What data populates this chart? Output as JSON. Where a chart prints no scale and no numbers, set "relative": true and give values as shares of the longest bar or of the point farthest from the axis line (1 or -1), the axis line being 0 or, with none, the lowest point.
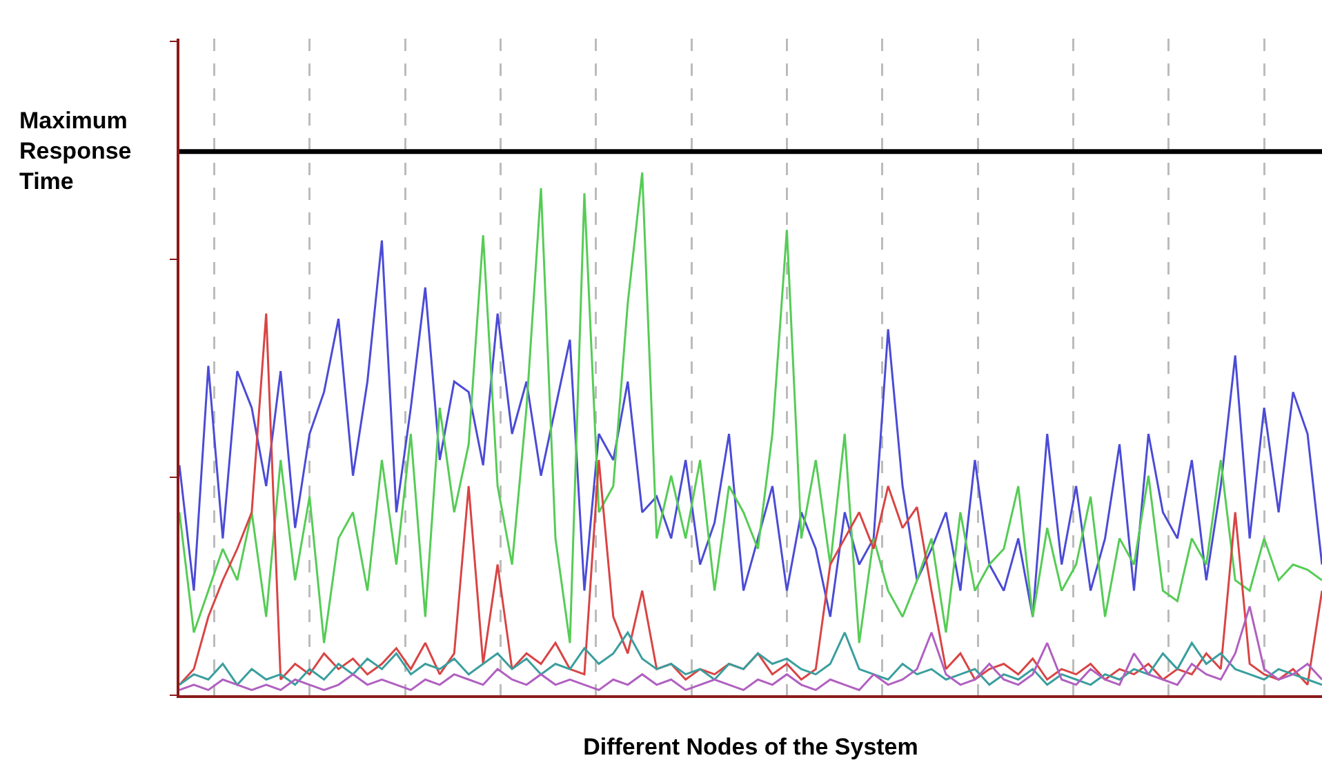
{
  "chart_data": {
    "type": "line",
    "xlabel": "Different Nodes of the System",
    "relative": true,
    "grid": "x",
    "categories": [
      null,
      null,
      null,
      null,
      null,
      null,
      null,
      null,
      null,
      null,
      null,
      null,
      null,
      null,
      null,
      null,
      null,
      null,
      null,
      null,
      null,
      null,
      null,
      null,
      null,
      null,
      null,
      null,
      null,
      null,
      null,
      null,
      null,
      null,
      null,
      null,
      null,
      null,
      null,
      null,
      null,
      null,
      null,
      null,
      null,
      null,
      null,
      null,
      null,
      null,
      null,
      null,
      null,
      null,
      null,
      null,
      null,
      null,
      null,
      null,
      null,
      null,
      null,
      null,
      null,
      null,
      null,
      null,
      null,
      null,
      null,
      null,
      null,
      null,
      null,
      null,
      null,
      null,
      null,
      null
    ],
    "series": [
      {
        "color": "#4b4bd6",
        "values": [
          0.44,
          0.2,
          0.63,
          0.3,
          0.62,
          0.55,
          0.4,
          0.62,
          0.32,
          0.5,
          0.58,
          0.72,
          0.42,
          0.6,
          0.87,
          0.35,
          0.55,
          0.78,
          0.45,
          0.6,
          0.58,
          0.44,
          0.73,
          0.5,
          0.6,
          0.42,
          0.55,
          0.68,
          0.2,
          0.5,
          0.45,
          0.6,
          0.35,
          0.38,
          0.3,
          0.45,
          0.25,
          0.33,
          0.5,
          0.2,
          0.3,
          0.4,
          0.2,
          0.35,
          0.28,
          0.15,
          0.35,
          0.25,
          0.3,
          0.7,
          0.4,
          0.22,
          0.28,
          0.35,
          0.2,
          0.45,
          0.25,
          0.2,
          0.3,
          0.15,
          0.5,
          0.25,
          0.4,
          0.2,
          0.3,
          0.48,
          0.2,
          0.5,
          0.35,
          0.3,
          0.45,
          0.22,
          0.4,
          0.65,
          0.3,
          0.55,
          0.35,
          0.58,
          0.5,
          0.25
        ]
      },
      {
        "color": "#55cc55",
        "values": [
          0.35,
          0.12,
          0.2,
          0.28,
          0.22,
          0.35,
          0.15,
          0.45,
          0.22,
          0.38,
          0.1,
          0.3,
          0.35,
          0.2,
          0.45,
          0.25,
          0.5,
          0.15,
          0.55,
          0.35,
          0.48,
          0.88,
          0.4,
          0.25,
          0.55,
          0.97,
          0.3,
          0.1,
          0.96,
          0.35,
          0.4,
          0.75,
          1.0,
          0.3,
          0.42,
          0.3,
          0.45,
          0.2,
          0.4,
          0.35,
          0.28,
          0.5,
          0.89,
          0.3,
          0.45,
          0.25,
          0.5,
          0.1,
          0.3,
          0.2,
          0.15,
          0.22,
          0.3,
          0.12,
          0.35,
          0.2,
          0.25,
          0.28,
          0.4,
          0.15,
          0.32,
          0.2,
          0.25,
          0.38,
          0.15,
          0.3,
          0.25,
          0.42,
          0.2,
          0.18,
          0.3,
          0.25,
          0.45,
          0.22,
          0.2,
          0.3,
          0.22,
          0.25,
          0.24,
          0.22
        ]
      },
      {
        "color": "#d94444",
        "values": [
          0.02,
          0.05,
          0.15,
          0.22,
          0.28,
          0.35,
          0.73,
          0.03,
          0.06,
          0.04,
          0.08,
          0.05,
          0.07,
          0.04,
          0.06,
          0.09,
          0.05,
          0.1,
          0.04,
          0.08,
          0.4,
          0.06,
          0.25,
          0.05,
          0.08,
          0.06,
          0.1,
          0.05,
          0.04,
          0.45,
          0.15,
          0.08,
          0.2,
          0.05,
          0.06,
          0.03,
          0.05,
          0.04,
          0.06,
          0.05,
          0.08,
          0.04,
          0.06,
          0.03,
          0.05,
          0.25,
          0.3,
          0.35,
          0.28,
          0.4,
          0.32,
          0.36,
          0.2,
          0.05,
          0.08,
          0.03,
          0.05,
          0.06,
          0.04,
          0.07,
          0.03,
          0.05,
          0.04,
          0.06,
          0.03,
          0.05,
          0.04,
          0.06,
          0.03,
          0.05,
          0.04,
          0.08,
          0.05,
          0.35,
          0.06,
          0.04,
          0.03,
          0.05,
          0.02,
          0.2
        ]
      },
      {
        "color": "#3a9e9e",
        "values": [
          0.02,
          0.04,
          0.03,
          0.06,
          0.02,
          0.05,
          0.03,
          0.04,
          0.02,
          0.05,
          0.03,
          0.06,
          0.04,
          0.07,
          0.05,
          0.08,
          0.04,
          0.06,
          0.05,
          0.07,
          0.04,
          0.06,
          0.08,
          0.05,
          0.07,
          0.04,
          0.06,
          0.05,
          0.09,
          0.06,
          0.08,
          0.12,
          0.07,
          0.05,
          0.06,
          0.04,
          0.05,
          0.03,
          0.06,
          0.05,
          0.08,
          0.06,
          0.07,
          0.05,
          0.04,
          0.06,
          0.12,
          0.05,
          0.04,
          0.03,
          0.06,
          0.04,
          0.05,
          0.03,
          0.04,
          0.05,
          0.02,
          0.04,
          0.03,
          0.05,
          0.02,
          0.04,
          0.03,
          0.02,
          0.04,
          0.03,
          0.05,
          0.04,
          0.08,
          0.05,
          0.1,
          0.06,
          0.08,
          0.05,
          0.04,
          0.03,
          0.05,
          0.04,
          0.03,
          0.02
        ]
      },
      {
        "color": "#b060c0",
        "values": [
          0.01,
          0.02,
          0.01,
          0.03,
          0.02,
          0.01,
          0.02,
          0.01,
          0.03,
          0.02,
          0.01,
          0.02,
          0.04,
          0.02,
          0.03,
          0.02,
          0.01,
          0.03,
          0.02,
          0.04,
          0.03,
          0.02,
          0.05,
          0.03,
          0.02,
          0.04,
          0.02,
          0.03,
          0.02,
          0.01,
          0.03,
          0.02,
          0.04,
          0.02,
          0.03,
          0.01,
          0.02,
          0.03,
          0.02,
          0.01,
          0.03,
          0.02,
          0.04,
          0.02,
          0.01,
          0.03,
          0.02,
          0.01,
          0.04,
          0.02,
          0.03,
          0.05,
          0.12,
          0.04,
          0.02,
          0.03,
          0.06,
          0.03,
          0.02,
          0.04,
          0.1,
          0.03,
          0.02,
          0.05,
          0.03,
          0.02,
          0.08,
          0.04,
          0.03,
          0.02,
          0.06,
          0.04,
          0.03,
          0.08,
          0.17,
          0.05,
          0.03,
          0.04,
          0.06,
          0.03
        ]
      }
    ],
    "ref_lines": [
      {
        "axis": "y",
        "value": 1.04,
        "label": "Maximum Response Time",
        "color": "#000000",
        "line_style": "solid"
      }
    ]
  }
}
